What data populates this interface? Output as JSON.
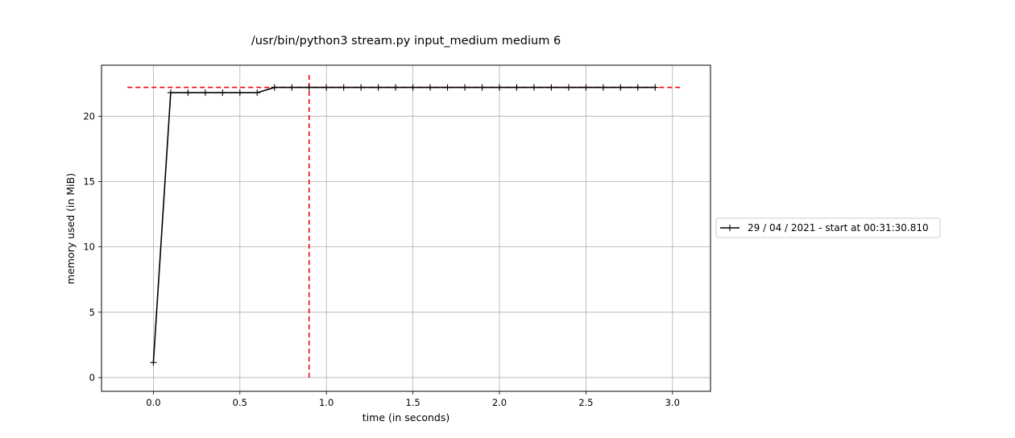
{
  "chart_data": {
    "type": "line",
    "title": "/usr/bin/python3 stream.py input_medium medium 6",
    "xlabel": "time (in seconds)",
    "ylabel": "memory used (in MiB)",
    "xlim": [
      -0.3,
      3.22
    ],
    "ylim": [
      -1.05,
      23.9
    ],
    "x_ticks": [
      0.0,
      0.5,
      1.0,
      1.5,
      2.0,
      2.5,
      3.0
    ],
    "x_tick_labels": [
      "0.0",
      "0.5",
      "1.0",
      "1.5",
      "2.0",
      "2.5",
      "3.0"
    ],
    "y_ticks": [
      0,
      5,
      10,
      15,
      20
    ],
    "y_tick_labels": [
      "0",
      "5",
      "10",
      "15",
      "20"
    ],
    "grid": true,
    "legend_placement": "outside-right",
    "series": [
      {
        "name": "29 / 04 / 2021 - start at 00:31:30.810",
        "color": "#000000",
        "marker": "+",
        "x": [
          0.0,
          0.1,
          0.2,
          0.3,
          0.4,
          0.5,
          0.6,
          0.7,
          0.8,
          0.9,
          1.0,
          1.1,
          1.2,
          1.3,
          1.4,
          1.5,
          1.6,
          1.7,
          1.8,
          1.9,
          2.0,
          2.1,
          2.2,
          2.3,
          2.4,
          2.5,
          2.6,
          2.7,
          2.8,
          2.9
        ],
        "values": [
          1.15,
          21.8,
          21.8,
          21.8,
          21.8,
          21.8,
          21.8,
          22.2,
          22.2,
          22.2,
          22.2,
          22.2,
          22.2,
          22.2,
          22.2,
          22.2,
          22.2,
          22.2,
          22.2,
          22.2,
          22.2,
          22.2,
          22.2,
          22.2,
          22.2,
          22.2,
          22.2,
          22.2,
          22.2,
          22.2
        ]
      }
    ],
    "reference_lines": [
      {
        "orientation": "horizontal",
        "value": 22.2,
        "from": -0.15,
        "to": 3.06,
        "color": "#ff0000",
        "style": "dashed"
      },
      {
        "orientation": "vertical",
        "value": 0.9,
        "from": 0.0,
        "to": 23.3,
        "color": "#ff0000",
        "style": "dashed"
      }
    ]
  }
}
